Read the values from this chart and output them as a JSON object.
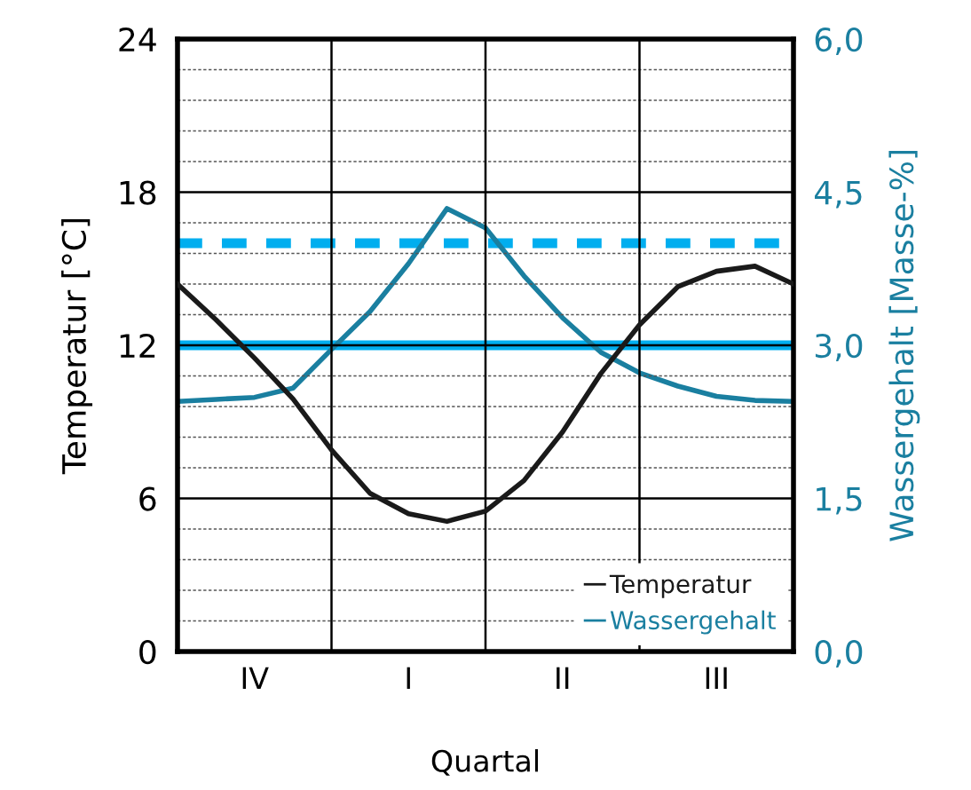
{
  "chart_data": {
    "type": "line",
    "xlabel": "Quartal",
    "ylabel": "Temperatur [°C]",
    "y2label": "Wassergehalt [Masse-%]",
    "categories": [
      null,
      null,
      "IV",
      null,
      null,
      null,
      "I",
      null,
      null,
      null,
      "II",
      null,
      null,
      null,
      "III",
      null,
      null
    ],
    "ylim": [
      0,
      24
    ],
    "yticks": [
      0,
      {
        "value": 1.2,
        "label": null
      },
      {
        "value": 2.4,
        "label": null
      },
      {
        "value": 3.6,
        "label": null
      },
      {
        "value": 4.8,
        "label": null
      },
      6,
      {
        "value": 7.2,
        "label": null
      },
      {
        "value": 8.4,
        "label": null
      },
      {
        "value": 9.6,
        "label": null
      },
      {
        "value": 10.8,
        "label": null
      },
      12,
      {
        "value": 13.2,
        "label": null
      },
      {
        "value": 14.4,
        "label": null
      },
      {
        "value": 15.6,
        "label": null
      },
      {
        "value": 16.8,
        "label": null
      },
      18,
      {
        "value": 19.2,
        "label": null
      },
      {
        "value": 20.4,
        "label": null
      },
      {
        "value": 21.6,
        "label": null
      },
      {
        "value": 22.8,
        "label": null
      },
      24
    ],
    "y2lim": [
      0,
      6
    ],
    "y2ticks": [
      {
        "value": 0,
        "label": "0,0"
      },
      {
        "value": 1.5,
        "label": "1,5"
      },
      {
        "value": 3,
        "label": "3,0"
      },
      {
        "value": 4.5,
        "label": "4,5"
      },
      {
        "value": 6,
        "label": "6,0"
      }
    ],
    "grid": true,
    "legend": "bottom right",
    "marker": "none",
    "line_style": "solid",
    "series": [
      {
        "name": "Temperatur",
        "color": "#1a1a1a",
        "values": [
          14.4,
          13.0,
          11.5,
          9.9,
          7.9,
          6.2,
          5.4,
          5.1,
          5.5,
          6.7,
          8.6,
          10.9,
          12.8,
          14.3,
          14.9,
          15.1,
          14.4
        ]
      },
      {
        "name": "Wassergehalt",
        "color": "#1a7fa0",
        "axis": "y2",
        "values": [
          2.45,
          2.47,
          2.49,
          2.58,
          2.96,
          3.33,
          3.8,
          4.34,
          4.15,
          3.68,
          3.27,
          2.93,
          2.73,
          2.6,
          2.5,
          2.46,
          2.45
        ]
      }
    ],
    "ref_lines": [
      {
        "axis": "y2",
        "value": 4.0,
        "color": "#00aeef",
        "line_style": "dashed"
      },
      {
        "axis": "y2",
        "value": 3.0,
        "color": "#00aeef",
        "line_style": "solid"
      }
    ]
  }
}
